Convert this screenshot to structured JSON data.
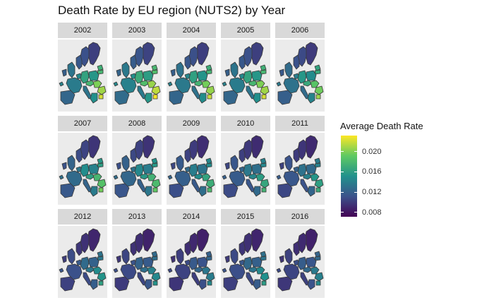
{
  "title": "Death Rate by EU region (NUTS2) by Year",
  "legend": {
    "title": "Average Death Rate",
    "ticks": [
      "0.008",
      "0.012",
      "0.016",
      "0.020"
    ],
    "tick_values": [
      0.008,
      0.012,
      0.016,
      0.02
    ],
    "range": [
      0.0071,
      0.0232
    ],
    "colors": [
      "#440154",
      "#3b528b",
      "#21918c",
      "#5ec962",
      "#fde725"
    ]
  },
  "no_data_color": "#3a3a3a",
  "panels": [
    {
      "year": "2002",
      "level": 0.55
    },
    {
      "year": "2003",
      "level": 0.58
    },
    {
      "year": "2004",
      "level": 0.54
    },
    {
      "year": "2005",
      "level": 0.55
    },
    {
      "year": "2006",
      "level": 0.5
    },
    {
      "year": "2007",
      "level": 0.46
    },
    {
      "year": "2008",
      "level": 0.44
    },
    {
      "year": "2009",
      "level": 0.4
    },
    {
      "year": "2010",
      "level": 0.38
    },
    {
      "year": "2011",
      "level": 0.36
    },
    {
      "year": "2012",
      "level": 0.33
    },
    {
      "year": "2013",
      "level": 0.3
    },
    {
      "year": "2014",
      "level": 0.27
    },
    {
      "year": "2015",
      "level": 0.32
    },
    {
      "year": "2016",
      "level": 0.28
    }
  ]
}
